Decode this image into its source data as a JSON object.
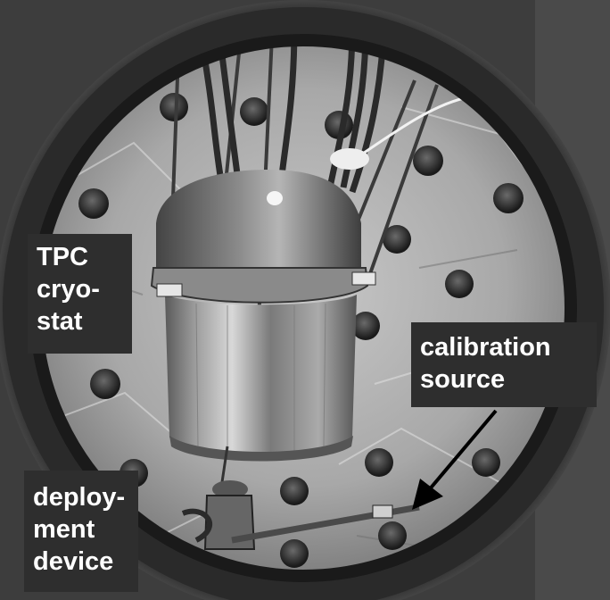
{
  "labels": {
    "tpc": [
      "TPC",
      "cryo-",
      "stat"
    ],
    "calibration": [
      "calibration",
      "source"
    ],
    "deployment": [
      "deploy-",
      "ment",
      "device"
    ]
  }
}
